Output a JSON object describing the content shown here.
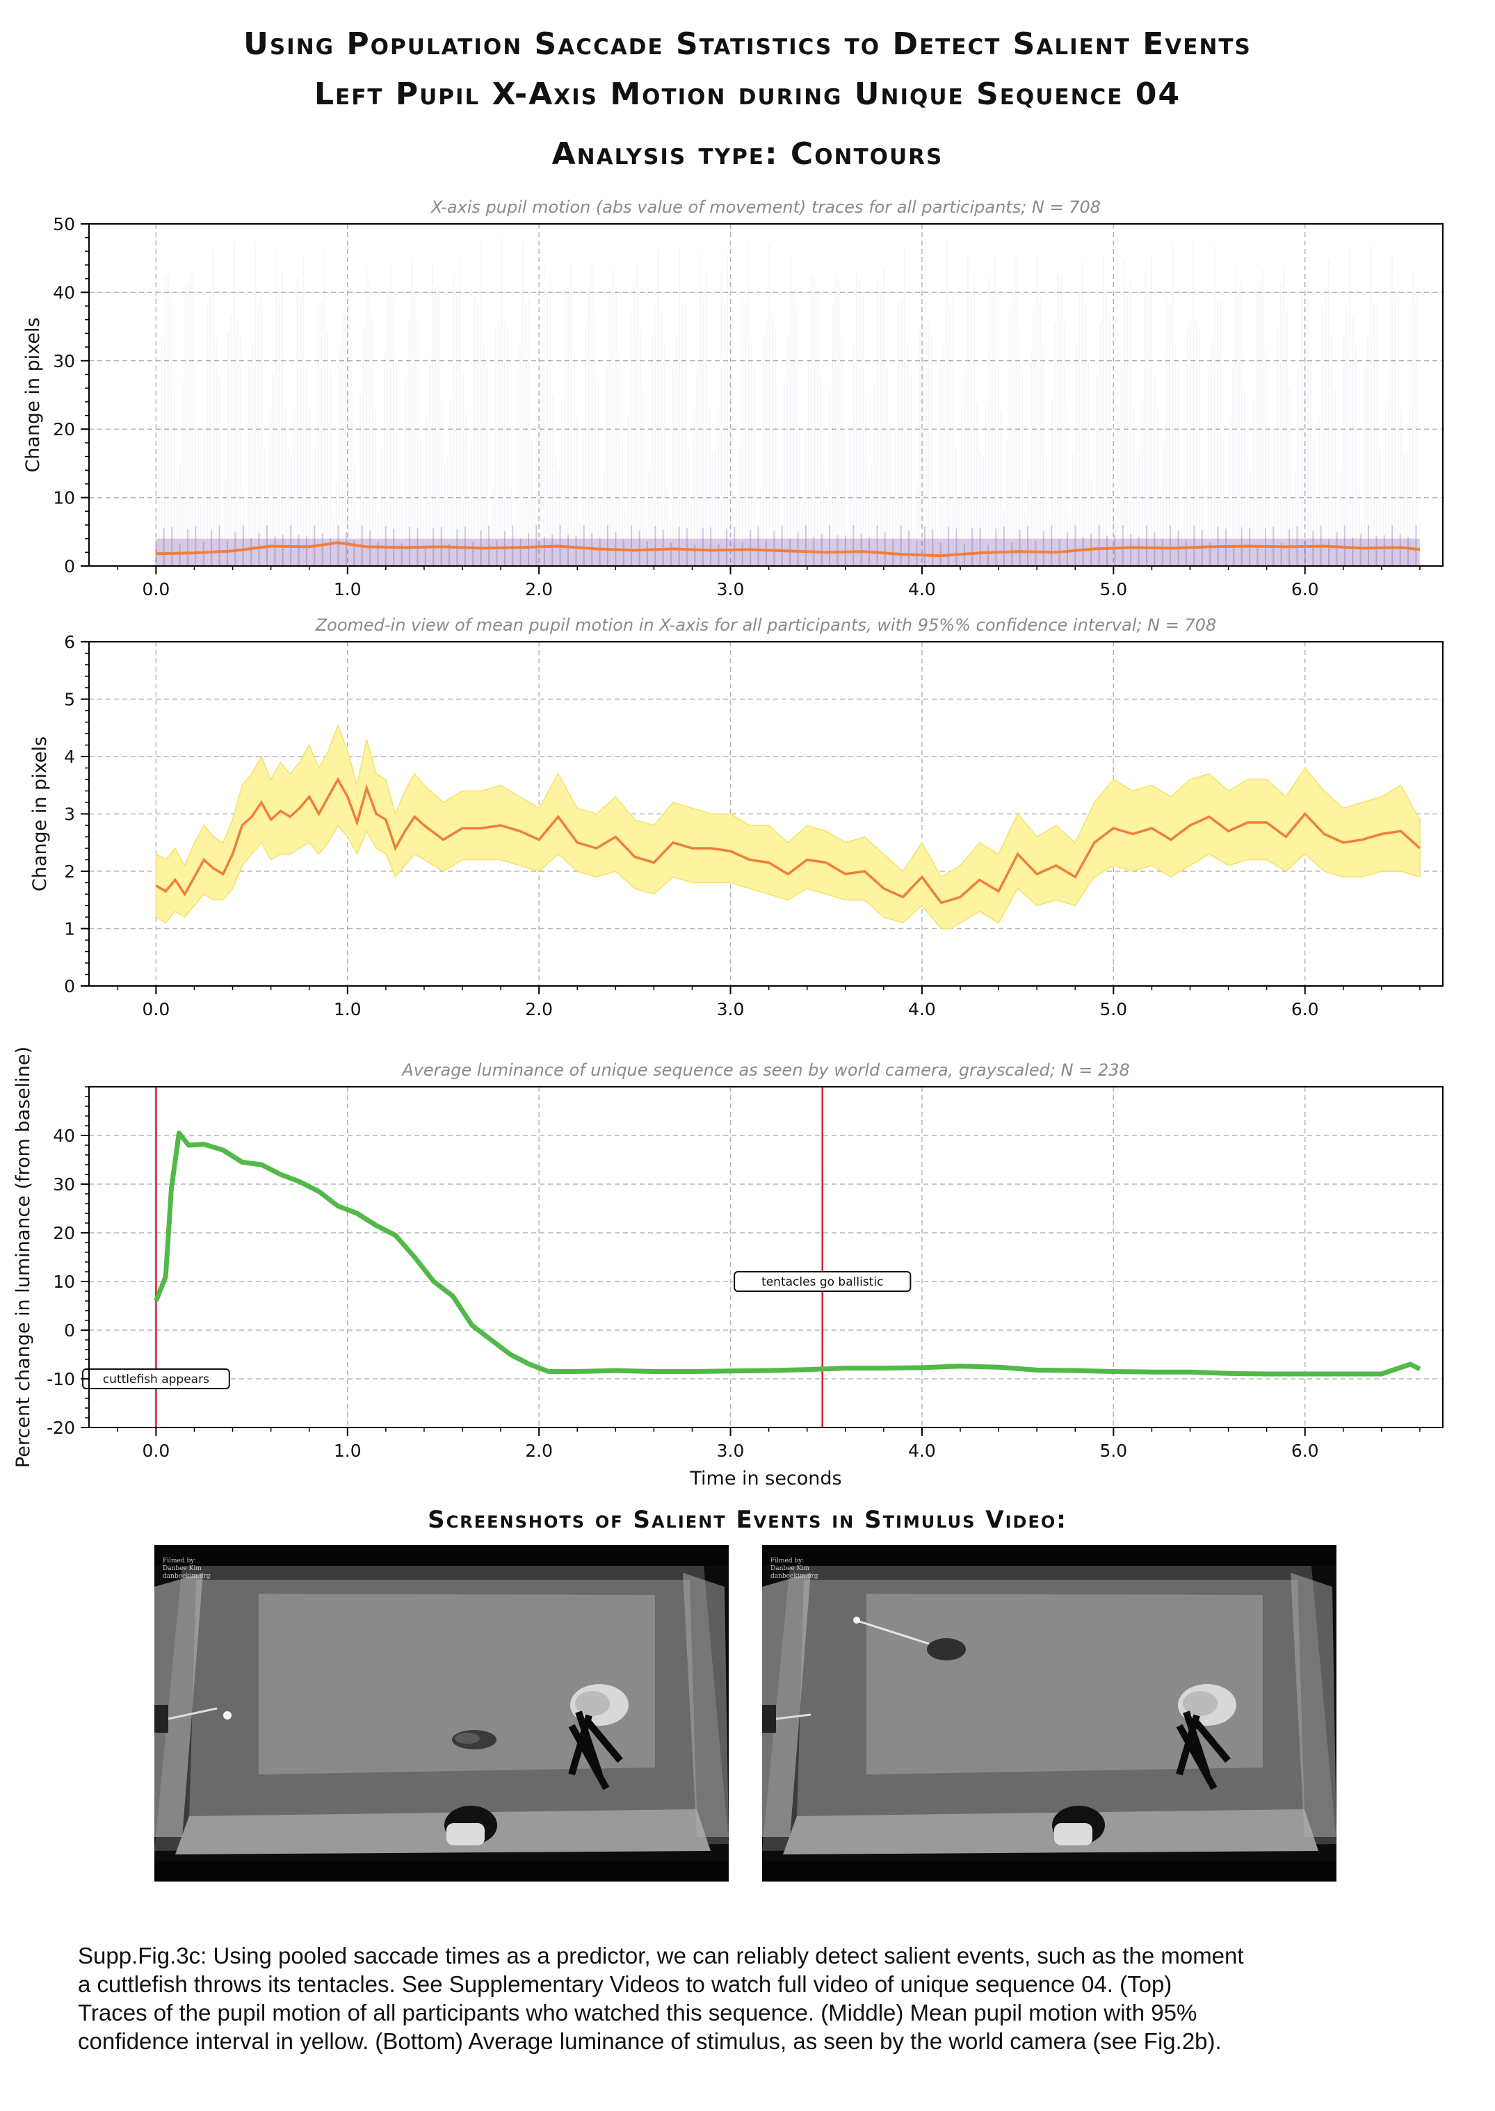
{
  "header": {
    "line1": "Using Population Saccade Statistics to Detect Salient Events",
    "line2": "Left Pupil X-Axis Motion during Unique Sequence 04",
    "line3": "Analysis type: Contours"
  },
  "chart_data": [
    {
      "type": "line",
      "title": "X-axis pupil motion (abs value of movement) traces for all participants; N = 708",
      "ylabel": "Change in pixels",
      "xlabel": "",
      "xlim": [
        -0.35,
        6.72
      ],
      "ylim": [
        0,
        50
      ],
      "xticks": [
        "0.0",
        "1.0",
        "2.0",
        "3.0",
        "4.0",
        "5.0",
        "6.0"
      ],
      "yticks": [
        "0",
        "10",
        "20",
        "30",
        "40",
        "50"
      ],
      "grid": true,
      "colors": {
        "traces": "#7b4fa6",
        "mean": "#f07f3c"
      },
      "series": [
        {
          "x": [
            0.0,
            0.2,
            0.4,
            0.6,
            0.8,
            0.95,
            1.1,
            1.3,
            1.5,
            1.7,
            1.9,
            2.1,
            2.3,
            2.5,
            2.7,
            2.9,
            3.1,
            3.3,
            3.5,
            3.7,
            3.9,
            4.1,
            4.3,
            4.5,
            4.7,
            4.9,
            5.1,
            5.3,
            5.5,
            5.7,
            5.9,
            6.1,
            6.3,
            6.5,
            6.6
          ],
          "values": [
            1.8,
            1.9,
            2.2,
            2.9,
            2.8,
            3.4,
            2.8,
            2.7,
            2.8,
            2.6,
            2.7,
            2.9,
            2.5,
            2.3,
            2.5,
            2.3,
            2.4,
            2.2,
            2.0,
            2.1,
            1.7,
            1.5,
            1.9,
            2.1,
            2.0,
            2.5,
            2.7,
            2.6,
            2.8,
            2.9,
            2.8,
            2.9,
            2.6,
            2.7,
            2.4
          ]
        }
      ]
    },
    {
      "type": "area",
      "title": "Zoomed-in view of mean pupil motion in X-axis for all participants, with 95%% confidence interval; N = 708",
      "ylabel": "Change in pixels",
      "xlabel": "",
      "xlim": [
        -0.35,
        6.72
      ],
      "ylim": [
        0,
        6
      ],
      "xticks": [
        "0.0",
        "1.0",
        "2.0",
        "3.0",
        "4.0",
        "5.0",
        "6.0"
      ],
      "yticks": [
        "0",
        "1",
        "2",
        "3",
        "4",
        "5",
        "6"
      ],
      "grid": true,
      "colors": {
        "mean": "#f07f3c",
        "band": "#fdf3a0",
        "band_edge": "#f2e36a"
      },
      "series": [
        {
          "x": [
            0.0,
            0.05,
            0.1,
            0.15,
            0.2,
            0.25,
            0.3,
            0.35,
            0.4,
            0.45,
            0.5,
            0.55,
            0.6,
            0.65,
            0.7,
            0.75,
            0.8,
            0.85,
            0.9,
            0.95,
            1.0,
            1.05,
            1.1,
            1.15,
            1.2,
            1.25,
            1.3,
            1.35,
            1.4,
            1.5,
            1.6,
            1.7,
            1.8,
            1.9,
            2.0,
            2.1,
            2.2,
            2.3,
            2.4,
            2.5,
            2.6,
            2.7,
            2.8,
            2.9,
            3.0,
            3.1,
            3.2,
            3.3,
            3.4,
            3.5,
            3.6,
            3.7,
            3.8,
            3.9,
            4.0,
            4.1,
            4.15,
            4.2,
            4.3,
            4.4,
            4.5,
            4.6,
            4.7,
            4.8,
            4.9,
            5.0,
            5.1,
            5.2,
            5.3,
            5.4,
            5.5,
            5.6,
            5.7,
            5.8,
            5.9,
            6.0,
            6.1,
            6.2,
            6.3,
            6.4,
            6.5,
            6.6
          ],
          "values": [
            1.75,
            1.65,
            1.85,
            1.6,
            1.9,
            2.2,
            2.05,
            1.95,
            2.3,
            2.8,
            2.95,
            3.2,
            2.9,
            3.05,
            2.95,
            3.1,
            3.3,
            3.0,
            3.3,
            3.6,
            3.3,
            2.85,
            3.45,
            3.0,
            2.9,
            2.4,
            2.7,
            2.95,
            2.8,
            2.55,
            2.75,
            2.75,
            2.8,
            2.7,
            2.55,
            2.95,
            2.5,
            2.4,
            2.6,
            2.25,
            2.15,
            2.5,
            2.4,
            2.4,
            2.35,
            2.2,
            2.15,
            1.95,
            2.2,
            2.15,
            1.95,
            2.0,
            1.7,
            1.55,
            1.9,
            1.45,
            1.5,
            1.55,
            1.85,
            1.65,
            2.3,
            1.95,
            2.1,
            1.9,
            2.5,
            2.75,
            2.65,
            2.75,
            2.55,
            2.8,
            2.95,
            2.7,
            2.85,
            2.85,
            2.6,
            3.0,
            2.65,
            2.5,
            2.55,
            2.65,
            2.7,
            2.4
          ],
          "ci_lower": [
            1.2,
            1.1,
            1.3,
            1.2,
            1.4,
            1.6,
            1.5,
            1.5,
            1.7,
            2.1,
            2.3,
            2.5,
            2.2,
            2.3,
            2.3,
            2.4,
            2.5,
            2.3,
            2.5,
            2.8,
            2.6,
            2.3,
            2.7,
            2.4,
            2.3,
            1.9,
            2.1,
            2.3,
            2.2,
            2.0,
            2.2,
            2.2,
            2.2,
            2.1,
            2.0,
            2.3,
            2.0,
            1.9,
            2.0,
            1.7,
            1.6,
            1.9,
            1.8,
            1.8,
            1.8,
            1.7,
            1.6,
            1.5,
            1.7,
            1.6,
            1.5,
            1.5,
            1.2,
            1.1,
            1.4,
            1.0,
            1.0,
            1.1,
            1.3,
            1.1,
            1.7,
            1.4,
            1.5,
            1.4,
            1.9,
            2.1,
            2.0,
            2.1,
            1.9,
            2.1,
            2.3,
            2.1,
            2.2,
            2.2,
            2.0,
            2.3,
            2.0,
            1.9,
            1.9,
            2.0,
            2.0,
            1.9
          ],
          "ci_upper": [
            2.3,
            2.2,
            2.4,
            2.1,
            2.5,
            2.8,
            2.6,
            2.5,
            2.9,
            3.5,
            3.7,
            4.0,
            3.6,
            3.9,
            3.7,
            3.9,
            4.2,
            3.8,
            4.1,
            4.55,
            4.1,
            3.5,
            4.3,
            3.7,
            3.6,
            3.0,
            3.4,
            3.7,
            3.5,
            3.2,
            3.4,
            3.4,
            3.5,
            3.3,
            3.1,
            3.7,
            3.1,
            3.0,
            3.3,
            2.9,
            2.8,
            3.2,
            3.1,
            3.0,
            3.0,
            2.8,
            2.8,
            2.5,
            2.8,
            2.7,
            2.5,
            2.6,
            2.3,
            2.0,
            2.5,
            1.9,
            2.0,
            2.1,
            2.5,
            2.3,
            3.0,
            2.6,
            2.8,
            2.5,
            3.2,
            3.6,
            3.4,
            3.5,
            3.3,
            3.6,
            3.7,
            3.4,
            3.6,
            3.6,
            3.3,
            3.8,
            3.4,
            3.1,
            3.2,
            3.3,
            3.5,
            2.9
          ]
        }
      ]
    },
    {
      "type": "line",
      "title": "Average luminance of unique sequence as seen by world camera, grayscaled; N = 238",
      "ylabel": "Percent change in luminance (from baseline)",
      "xlabel": "Time in seconds",
      "xlim": [
        -0.35,
        6.72
      ],
      "ylim": [
        -20,
        50
      ],
      "xticks": [
        "0.0",
        "1.0",
        "2.0",
        "3.0",
        "4.0",
        "5.0",
        "6.0"
      ],
      "yticks": [
        "-20",
        "-10",
        "0",
        "10",
        "20",
        "30",
        "40"
      ],
      "grid": true,
      "colors": {
        "line": "#52b948",
        "event": "#d8202a"
      },
      "series": [
        {
          "x": [
            0.0,
            0.05,
            0.08,
            0.12,
            0.17,
            0.25,
            0.35,
            0.45,
            0.55,
            0.65,
            0.75,
            0.85,
            0.95,
            1.05,
            1.15,
            1.25,
            1.35,
            1.45,
            1.55,
            1.65,
            1.75,
            1.85,
            1.95,
            2.05,
            2.2,
            2.4,
            2.6,
            2.8,
            3.0,
            3.2,
            3.4,
            3.6,
            3.8,
            4.0,
            4.2,
            4.4,
            4.6,
            4.8,
            5.0,
            5.2,
            5.4,
            5.6,
            5.8,
            6.0,
            6.2,
            6.4,
            6.55,
            6.6
          ],
          "values": [
            6,
            11,
            29,
            40.5,
            38,
            38.2,
            37,
            34.5,
            34,
            32,
            30.5,
            28.5,
            25.5,
            24,
            21.5,
            19.5,
            15,
            10,
            7,
            1,
            -2,
            -5,
            -7,
            -8.5,
            -8.5,
            -8.3,
            -8.5,
            -8.5,
            -8.4,
            -8.3,
            -8.1,
            -7.8,
            -7.8,
            -7.7,
            -7.4,
            -7.6,
            -8.2,
            -8.3,
            -8.5,
            -8.6,
            -8.6,
            -8.9,
            -9.0,
            -9.0,
            -9.0,
            -9.0,
            -7,
            -8
          ]
        }
      ],
      "events": [
        {
          "x": 0.0,
          "label": "cuttlefish appears",
          "label_y": -10
        },
        {
          "x": 3.48,
          "label": "tentacles go ballistic",
          "label_y": 10
        }
      ]
    }
  ],
  "screenshots": {
    "heading": "Screenshots of Salient Events in Stimulus Video:",
    "credit_lines": [
      "Filmed by:",
      "Danbee Kim",
      "danbeekim.org"
    ]
  },
  "caption": {
    "line1": "Supp.Fig.3c: Using pooled saccade times as a predictor, we can reliably detect salient events, such as the moment",
    "line2": "a cuttlefish throws its tentacles. See Supplementary Videos to watch full video of unique sequence 04. (Top)",
    "line3": "Traces of the pupil motion of all participants who watched this sequence. (Middle) Mean pupil motion with 95%",
    "line4": "confidence interval in yellow.  (Bottom) Average luminance of stimulus, as seen by the world camera (see Fig.2b)."
  }
}
